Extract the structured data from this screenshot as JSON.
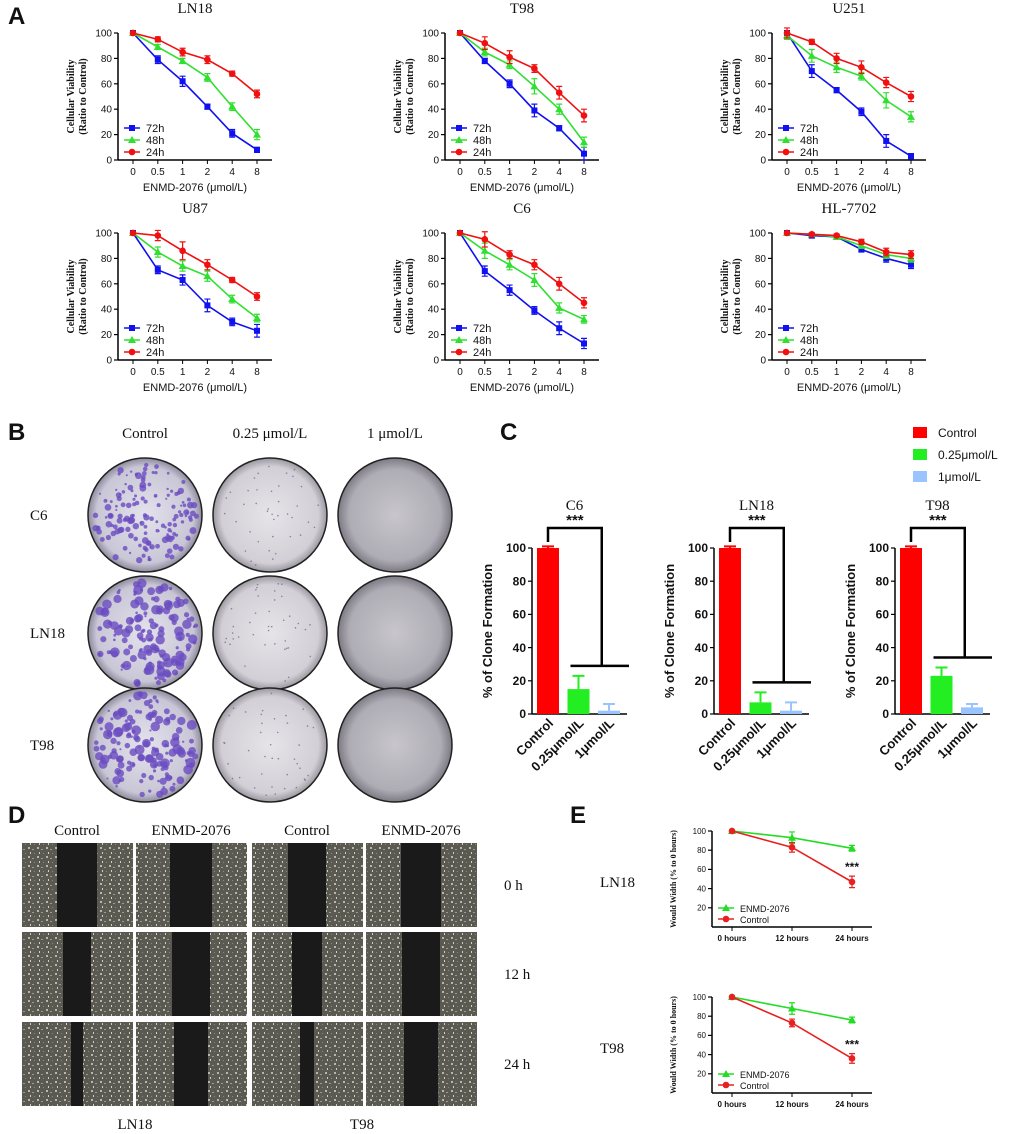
{
  "figure": {
    "panel_letters": [
      "A",
      "B",
      "C",
      "D",
      "E"
    ],
    "colony_assay": {
      "column_labels": [
        "Control",
        "0.25 μmol/L",
        "1 μmol/L"
      ],
      "row_labels": [
        "C6",
        "LN18",
        "T98"
      ]
    },
    "wound_assay": {
      "column_labels": [
        "Control",
        "ENMD-2076",
        "Control",
        "ENMD-2076"
      ],
      "row_labels": [
        "0 h",
        "12 h",
        "24 h"
      ],
      "cell_lines": [
        "LN18",
        "T98"
      ]
    }
  },
  "chart_data": [
    {
      "type": "line",
      "title": "LN18",
      "ylabel": [
        "Cellular Viability",
        "(Ratio to Control)"
      ],
      "xlabel": "ENMD-2076 (μmol/L)",
      "categories": [
        "0",
        "0.5",
        "1",
        "2",
        "4",
        "8"
      ],
      "ylim": [
        0,
        100
      ],
      "yticks": [
        0,
        20,
        40,
        60,
        80,
        100
      ],
      "legend": "lower left",
      "series": [
        {
          "name": "72h",
          "color": "#1010f0",
          "marker": "square",
          "values": [
            100,
            79,
            62,
            42,
            21,
            8
          ],
          "errors": [
            0,
            3,
            4,
            2,
            3,
            2
          ]
        },
        {
          "name": "48h",
          "color": "#30e030",
          "marker": "triangle",
          "values": [
            100,
            89,
            78,
            65,
            42,
            20
          ],
          "errors": [
            0,
            2,
            2,
            3,
            3,
            4
          ]
        },
        {
          "name": "24h",
          "color": "#f01010",
          "marker": "circle",
          "values": [
            100,
            95,
            85,
            79,
            68,
            52
          ],
          "errors": [
            0,
            2,
            3,
            3,
            2,
            3
          ]
        }
      ]
    },
    {
      "type": "line",
      "title": "T98",
      "ylabel": [
        "Cellular Viability",
        "(Ratio to Control)"
      ],
      "xlabel": "ENMD-2076 (μmol/L)",
      "categories": [
        "0",
        "0.5",
        "1",
        "2",
        "4",
        "8"
      ],
      "ylim": [
        0,
        100
      ],
      "yticks": [
        0,
        20,
        40,
        60,
        80,
        100
      ],
      "legend": "lower left",
      "series": [
        {
          "name": "72h",
          "color": "#1010f0",
          "marker": "square",
          "values": [
            100,
            78,
            60,
            39,
            25,
            5
          ],
          "errors": [
            0,
            2,
            3,
            5,
            2,
            5
          ]
        },
        {
          "name": "48h",
          "color": "#30e030",
          "marker": "triangle",
          "values": [
            100,
            85,
            75,
            58,
            40,
            14
          ],
          "errors": [
            0,
            3,
            3,
            6,
            4,
            4
          ]
        },
        {
          "name": "24h",
          "color": "#f01010",
          "marker": "circle",
          "values": [
            100,
            92,
            81,
            72,
            53,
            35
          ],
          "errors": [
            0,
            5,
            5,
            3,
            5,
            5
          ]
        }
      ]
    },
    {
      "type": "line",
      "title": "U251",
      "ylabel": [
        "Cellular Viability",
        "(Ratio to Control)"
      ],
      "xlabel": "ENMD-2076 (μmol/L)",
      "categories": [
        "0",
        "0.5",
        "1",
        "2",
        "4",
        "8"
      ],
      "ylim": [
        0,
        100
      ],
      "yticks": [
        0,
        20,
        40,
        60,
        80,
        100
      ],
      "legend": "lower left",
      "series": [
        {
          "name": "72h",
          "color": "#1010f0",
          "marker": "square",
          "values": [
            100,
            70,
            55,
            38,
            15,
            3
          ],
          "errors": [
            0,
            5,
            2,
            3,
            5,
            2
          ]
        },
        {
          "name": "48h",
          "color": "#30e030",
          "marker": "triangle",
          "values": [
            98,
            82,
            73,
            66,
            47,
            34
          ],
          "errors": [
            3,
            5,
            4,
            3,
            6,
            4
          ]
        },
        {
          "name": "24h",
          "color": "#f01010",
          "marker": "circle",
          "values": [
            100,
            93,
            80,
            73,
            61,
            50
          ],
          "errors": [
            4,
            2,
            4,
            5,
            4,
            4
          ]
        }
      ]
    },
    {
      "type": "line",
      "title": "U87",
      "ylabel": [
        "Cellular Viability",
        "(Ratio to Control)"
      ],
      "xlabel": "ENMD-2076 (μmol/L)",
      "categories": [
        "0",
        "0.5",
        "1",
        "2",
        "4",
        "8"
      ],
      "ylim": [
        0,
        100
      ],
      "yticks": [
        0,
        20,
        40,
        60,
        80,
        100
      ],
      "legend": "lower left",
      "series": [
        {
          "name": "72h",
          "color": "#1010f0",
          "marker": "square",
          "values": [
            100,
            71,
            63,
            43,
            30,
            23
          ],
          "errors": [
            0,
            3,
            4,
            5,
            3,
            5
          ]
        },
        {
          "name": "48h",
          "color": "#30e030",
          "marker": "triangle",
          "values": [
            100,
            85,
            74,
            66,
            48,
            33
          ],
          "errors": [
            0,
            4,
            4,
            4,
            3,
            3
          ]
        },
        {
          "name": "24h",
          "color": "#f01010",
          "marker": "circle",
          "values": [
            100,
            98,
            86,
            75,
            63,
            50
          ],
          "errors": [
            0,
            4,
            7,
            4,
            2,
            3
          ]
        }
      ]
    },
    {
      "type": "line",
      "title": "C6",
      "ylabel": [
        "Cellular Viability",
        "(Ratio to Control)"
      ],
      "xlabel": "ENMD-2076 (μmol/L)",
      "categories": [
        "0",
        "0.5",
        "1",
        "2",
        "4",
        "8"
      ],
      "ylim": [
        0,
        100
      ],
      "yticks": [
        0,
        20,
        40,
        60,
        80,
        100
      ],
      "legend": "lower left",
      "series": [
        {
          "name": "72h",
          "color": "#1010f0",
          "marker": "square",
          "values": [
            100,
            70,
            55,
            39,
            25,
            13
          ],
          "errors": [
            0,
            4,
            4,
            3,
            5,
            4
          ]
        },
        {
          "name": "48h",
          "color": "#30e030",
          "marker": "triangle",
          "values": [
            100,
            86,
            75,
            63,
            41,
            32
          ],
          "errors": [
            0,
            6,
            4,
            5,
            4,
            3
          ]
        },
        {
          "name": "24h",
          "color": "#f01010",
          "marker": "circle",
          "values": [
            100,
            95,
            83,
            75,
            60,
            45
          ],
          "errors": [
            0,
            6,
            3,
            4,
            5,
            4
          ]
        }
      ]
    },
    {
      "type": "line",
      "title": "HL-7702",
      "ylabel": [
        "Cellular Viability",
        "(Ratio to Control)"
      ],
      "xlabel": "ENMD-2076 (μmol/L)",
      "categories": [
        "0",
        "0.5",
        "1",
        "2",
        "4",
        "8"
      ],
      "ylim": [
        0,
        100
      ],
      "yticks": [
        0,
        20,
        40,
        60,
        80,
        100
      ],
      "legend": "lower left",
      "series": [
        {
          "name": "72h",
          "color": "#1010f0",
          "marker": "square",
          "values": [
            100,
            98,
            97,
            87,
            80,
            75
          ],
          "errors": [
            0,
            2,
            2,
            2,
            3,
            3
          ]
        },
        {
          "name": "48h",
          "color": "#30e030",
          "marker": "triangle",
          "values": [
            100,
            99,
            97,
            90,
            83,
            80
          ],
          "errors": [
            0,
            1,
            2,
            2,
            3,
            3
          ]
        },
        {
          "name": "24h",
          "color": "#f01010",
          "marker": "circle",
          "values": [
            100,
            99,
            98,
            93,
            85,
            83
          ],
          "errors": [
            0,
            1,
            1,
            2,
            3,
            3
          ]
        }
      ]
    },
    {
      "type": "bar",
      "title": "C6",
      "ylabel": "% of Clone Formation",
      "categories": [
        "Control",
        "0.25μmol/L",
        "1μmol/L"
      ],
      "values": [
        100,
        15,
        2
      ],
      "errors": [
        1,
        8,
        4
      ],
      "colors": [
        "#ff0000",
        "#22ee22",
        "#99c4ff"
      ],
      "ylim": [
        0,
        100
      ],
      "yticks": [
        0,
        20,
        40,
        60,
        80,
        100
      ],
      "annotation": "***",
      "legend": "upper right"
    },
    {
      "type": "bar",
      "title": "LN18",
      "ylabel": "% of Clone Formation",
      "categories": [
        "Control",
        "0.25μmol/L",
        "1μmol/L"
      ],
      "values": [
        100,
        7,
        2
      ],
      "errors": [
        1,
        6,
        5
      ],
      "colors": [
        "#ff0000",
        "#22ee22",
        "#99c4ff"
      ],
      "ylim": [
        0,
        100
      ],
      "yticks": [
        0,
        20,
        40,
        60,
        80,
        100
      ],
      "annotation": "***"
    },
    {
      "type": "bar",
      "title": "T98",
      "ylabel": "% of Clone Formation",
      "categories": [
        "Control",
        "0.25μmol/L",
        "1μmol/L"
      ],
      "values": [
        100,
        23,
        4
      ],
      "errors": [
        1,
        5,
        2
      ],
      "colors": [
        "#ff0000",
        "#22ee22",
        "#99c4ff"
      ],
      "ylim": [
        0,
        100
      ],
      "yticks": [
        0,
        20,
        40,
        60,
        80,
        100
      ],
      "annotation": "***"
    },
    {
      "type": "line",
      "title": "LN18",
      "ylabel": [
        "Would Width (% to 0 hours)"
      ],
      "categories": [
        "0 hours",
        "12 hours",
        "24 hours"
      ],
      "ylim": [
        0,
        100
      ],
      "yticks": [
        20,
        40,
        60,
        80,
        100
      ],
      "legend": "lower left",
      "annotation": "***",
      "series": [
        {
          "name": "ENMD-2076",
          "color": "#22dd22",
          "marker": "triangle",
          "values": [
            100,
            93,
            82
          ],
          "errors": [
            0,
            6,
            3
          ]
        },
        {
          "name": "Control",
          "color": "#e82020",
          "marker": "circle",
          "values": [
            100,
            83,
            47
          ],
          "errors": [
            0,
            5,
            6
          ]
        }
      ]
    },
    {
      "type": "line",
      "title": "T98",
      "ylabel": [
        "Would Width (% to 0 hours)"
      ],
      "categories": [
        "0 hours",
        "12 hours",
        "24 hours"
      ],
      "ylim": [
        0,
        100
      ],
      "yticks": [
        20,
        40,
        60,
        80,
        100
      ],
      "legend": "lower left",
      "annotation": "***",
      "series": [
        {
          "name": "ENMD-2076",
          "color": "#22dd22",
          "marker": "triangle",
          "values": [
            100,
            88,
            76
          ],
          "errors": [
            0,
            6,
            3
          ]
        },
        {
          "name": "Control",
          "color": "#e82020",
          "marker": "circle",
          "values": [
            100,
            73,
            36
          ],
          "errors": [
            0,
            4,
            5
          ]
        }
      ]
    }
  ]
}
